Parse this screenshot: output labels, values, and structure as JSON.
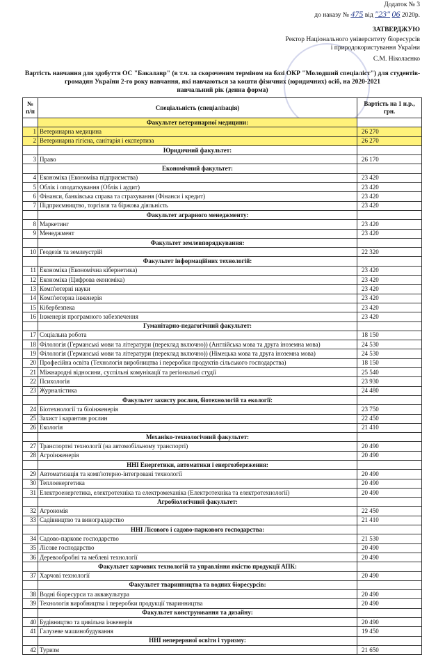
{
  "header": {
    "appendix": "Додаток № 3",
    "order_prefix": "до наказу №",
    "order_number": "475",
    "order_from": "від",
    "order_day": "\"23\"",
    "order_month": "06",
    "order_year": "2020р.",
    "approve": "ЗАТВЕРДЖУЮ",
    "rector_line1": "Ректор Національного університету біоресурсів",
    "rector_line2": "і природокористування України",
    "signatory": "С.М. Ніколаєнко",
    "title": "Вартість навчання для здобуття ОС \"Бакалавр\" (в т.ч. за скороченим терміном на базі ОКР \"Молодший спеціаліст\") для студентів-громадян України 2-го року навчання, які навчаються за кошти фізичних (юридичних) осіб, на 2020-2021",
    "subtitle": "навчальний рік (денна форма)"
  },
  "table": {
    "columns": [
      "№ п/п",
      "Спеціальність (спеціалізація)",
      "Вартість на 1 н.р., грн."
    ],
    "sections": [
      {
        "title": "Факультет ветеринарної медицини:",
        "highlight": true,
        "rows": [
          [
            "1",
            "Ветеринарна медицина",
            "26 270"
          ],
          [
            "2",
            "Ветеринарна гігієна, санітарія і експертиза",
            "26 270"
          ]
        ]
      },
      {
        "title": "Юридичний факультет:",
        "rows": [
          [
            "3",
            "Право",
            "26 170"
          ]
        ]
      },
      {
        "title": "Економічний факультет:",
        "rows": [
          [
            "4",
            "Економіка (Економіка підприємства)",
            "23 420"
          ],
          [
            "5",
            "Облік і оподаткування (Облік і аудит)",
            "23 420"
          ],
          [
            "6",
            "Фінанси, банківська справа та страхування (Фінанси і кредит)",
            "23 420"
          ],
          [
            "7",
            "Підприємництво, торгівля та біржова діяльність",
            "23 420"
          ]
        ]
      },
      {
        "title": "Факультет аграрного менеджменту:",
        "rows": [
          [
            "8",
            "Маркетинг",
            "23 420"
          ],
          [
            "9",
            "Менеджмент",
            "23 420"
          ]
        ]
      },
      {
        "title": "Факультет землевпорядкування:",
        "rows": [
          [
            "10",
            "Геодезія та землеустрій",
            "22 320"
          ]
        ]
      },
      {
        "title": "Факультет інформаційних технологій:",
        "rows": [
          [
            "11",
            "Економіка (Економічна кібернетика)",
            "23 420"
          ],
          [
            "12",
            "Економіка (Цифрова економіка)",
            "23 420"
          ],
          [
            "13",
            "Комп'ютерні науки",
            "23 420"
          ],
          [
            "14",
            "Комп'ютерна інженерія",
            "23 420"
          ],
          [
            "15",
            "Кібербезпека",
            "23 420"
          ],
          [
            "16",
            "Інженерія програмного забезпечення",
            "23 420"
          ]
        ]
      },
      {
        "title": "Гуманітарно-педагогічний факультет:",
        "rows": [
          [
            "17",
            "Соціальна робота",
            "18 150"
          ],
          [
            "18",
            "Філологія (Германські мови та літератури (переклад включно)) (Англійська мова та друга іноземна мова)",
            "24 530"
          ],
          [
            "19",
            "Філологія (Германські мови та літератури (переклад включно)) (Німецька мова та друга іноземна мова)",
            "24 530"
          ],
          [
            "20",
            "Професійна освіта (Технологія виробництва і переробки продуктів сільського господарства)",
            "18 150"
          ],
          [
            "21",
            "Міжнародні відносини, суспільні комунікації та регіональні студії",
            "25 540"
          ],
          [
            "22",
            "Психологія",
            "23 930"
          ],
          [
            "23",
            "Журналістика",
            "24 480"
          ]
        ]
      },
      {
        "title": "Факультет захисту рослин, біотехнологій та екології:",
        "rows": [
          [
            "24",
            "Біотехнології та біоінженерія",
            "23 750"
          ],
          [
            "25",
            "Захист і карантин рослин",
            "22 450"
          ],
          [
            "26",
            "Екологія",
            "21 410"
          ]
        ]
      },
      {
        "title": "Механіко-технологічний факультет:",
        "rows": [
          [
            "27",
            "Транспортні технології (на автомобільному транспорті)",
            "20 490"
          ],
          [
            "28",
            "Агроінженерія",
            "20 490"
          ]
        ]
      },
      {
        "title": "ННІ Енергетики, автоматики і енергозбереження:",
        "rows": [
          [
            "29",
            "Автоматизація та комп'ютерно-інтегровані технології",
            "20 490"
          ],
          [
            "30",
            "Теплоенергетика",
            "20 490"
          ],
          [
            "31",
            "Електроенергетика, електротехніка та електромеханіка (Електротехніка та електротехнології)",
            "20 490"
          ]
        ]
      },
      {
        "title": "Агробіологічний факультет:",
        "rows": [
          [
            "32",
            "Агрономія",
            "22 450"
          ],
          [
            "33",
            "Садівництво та виноградарство",
            "21 410"
          ]
        ]
      },
      {
        "title": "ННІ Лісового і садово-паркового господарства:",
        "rows": [
          [
            "34",
            "Садово-паркове господарство",
            "21 530"
          ],
          [
            "35",
            "Лісове господарство",
            "20 490"
          ],
          [
            "36",
            "Деревообробні та меблеві технології",
            "20 490"
          ]
        ]
      },
      {
        "title": "Факультет харчових технологій та управління якістю продукції АПК:",
        "rows": [
          [
            "37",
            "Харчові технології",
            "20 490"
          ]
        ]
      },
      {
        "title": "Факультет тваринництва та водних біоресурсів:",
        "rows": [
          [
            "38",
            "Водні біоресурси та аквакультура",
            "20 490"
          ],
          [
            "39",
            "Технологія виробництва і переробки продукції тваринництва",
            "20 490"
          ]
        ]
      },
      {
        "title": "Факультет конструювання та дизайну:",
        "rows": [
          [
            "40",
            "Будівництво та цивільна інженерія",
            "20 490"
          ],
          [
            "41",
            "Галузеве машинобудування",
            "19 450"
          ]
        ]
      },
      {
        "title": "ННІ неперервної освіти і туризму:",
        "rows": [
          [
            "42",
            "Туризм",
            "21 650"
          ]
        ]
      }
    ]
  }
}
